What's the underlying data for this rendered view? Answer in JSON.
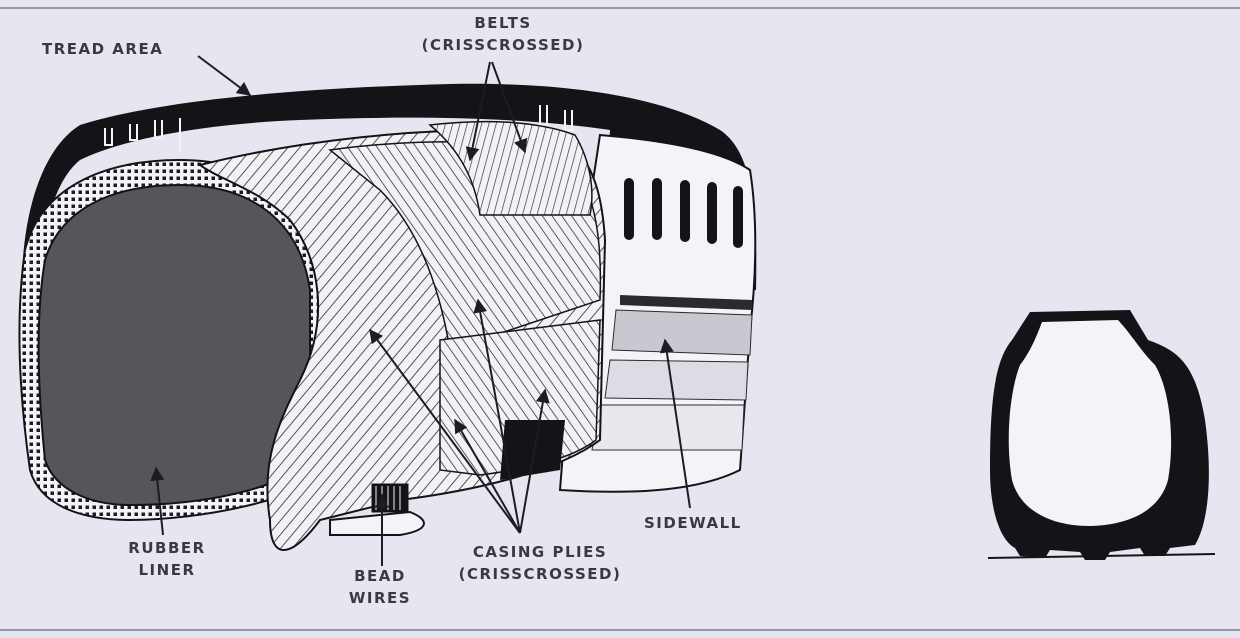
{
  "labels": {
    "tread_area": "TREAD AREA",
    "belts_line1": "BELTS",
    "belts_line2": "(CRISSCROSSED)",
    "rubber_liner_line1": "RUBBER",
    "rubber_liner_line2": "LINER",
    "bead_wires_line1": "BEAD",
    "bead_wires_line2": "WIRES",
    "casing_plies_line1": "CASING PLIES",
    "casing_plies_line2": "(CRISSCROSSED)",
    "sidewall": "SIDEWALL"
  },
  "colors": {
    "background": "#e6e6f1",
    "ink": "#141418",
    "liner_fill": "#55555c",
    "paper": "#f4f4f8"
  }
}
